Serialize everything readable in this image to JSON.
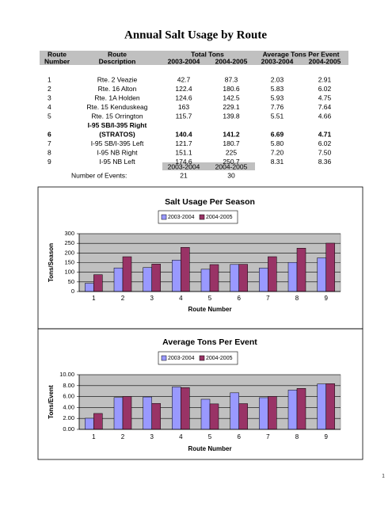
{
  "title": "Annual Salt Usage by Route",
  "table": {
    "header_top": [
      "Route",
      "Route",
      "Total Tons",
      "Average Tons Per Event"
    ],
    "header_bottom": [
      "Number",
      "Description",
      "2003-2004",
      "2004-2005",
      "2003-2004",
      "2004-2005"
    ],
    "rows": [
      {
        "number": "1",
        "description": [
          "Rte. 2 Veazie"
        ],
        "cells": [
          "42.7",
          "87.3",
          "2.03",
          "2.91"
        ]
      },
      {
        "number": "2",
        "description": [
          "Rte. 16 Alton"
        ],
        "cells": [
          "122.4",
          "180.6",
          "5.83",
          "6.02"
        ]
      },
      {
        "number": "3",
        "description": [
          "Rte. 1A Holden"
        ],
        "cells": [
          "124.6",
          "142.5",
          "5.93",
          "4.75"
        ]
      },
      {
        "number": "4",
        "description": [
          "Rte. 15 Kenduskeag"
        ],
        "cells": [
          "163",
          "229.1",
          "7.76",
          "7.64"
        ]
      },
      {
        "number": "5",
        "description": [
          "Rte. 15 Orrington"
        ],
        "cells": [
          "115.7",
          "139.8",
          "5.51",
          "4.66"
        ]
      },
      {
        "number": "6",
        "description": [
          "I-95 SB/I-395 Right",
          "(STRATOS)"
        ],
        "cells": [
          "140.4",
          "141.2",
          "6.69",
          "4.71"
        ],
        "bold": true
      },
      {
        "number": "7",
        "description": [
          "I-95 SB/I-395 Left"
        ],
        "cells": [
          "121.7",
          "180.7",
          "5.80",
          "6.02"
        ]
      },
      {
        "number": "8",
        "description": [
          "I-95 NB Right"
        ],
        "cells": [
          "151.1",
          "225",
          "7.20",
          "7.50"
        ]
      },
      {
        "number": "9",
        "description": [
          "I-95 NB Left"
        ],
        "cells": [
          "174.6",
          "250.7",
          "8.31",
          "8.36"
        ]
      }
    ]
  },
  "events": {
    "header": [
      "2003-2004",
      "2004-2005"
    ],
    "label": "Number of Events:",
    "values": [
      "21",
      "30"
    ]
  },
  "chart_data": [
    {
      "type": "bar",
      "title": "Salt Usage Per Season",
      "y_label": "Tons/Season",
      "x_label": "Route Number",
      "categories": [
        "1",
        "2",
        "3",
        "4",
        "5",
        "6",
        "7",
        "8",
        "9"
      ],
      "series": [
        {
          "name": "2003-2004",
          "color": "#9999ff",
          "values": [
            42.7,
            122.4,
            124.6,
            163,
            115.7,
            140.4,
            121.7,
            151.1,
            174.6
          ]
        },
        {
          "name": "2004-2005",
          "color": "#993366",
          "values": [
            87.3,
            180.6,
            142.5,
            229.1,
            139.8,
            141.2,
            180.7,
            225,
            250.7
          ]
        }
      ],
      "ylim": [
        0,
        300
      ],
      "yticks": [
        0,
        50,
        100,
        150,
        200,
        250,
        300
      ],
      "grid": true,
      "legend": "top"
    },
    {
      "type": "bar",
      "title": "Average Tons Per Event",
      "y_label": "Tons/Event",
      "x_label": "Route Number",
      "categories": [
        "1",
        "2",
        "3",
        "4",
        "5",
        "6",
        "7",
        "8",
        "9"
      ],
      "series": [
        {
          "name": "2003-2004",
          "color": "#9999ff",
          "values": [
            2.03,
            5.83,
            5.93,
            7.76,
            5.51,
            6.69,
            5.8,
            7.2,
            8.31
          ]
        },
        {
          "name": "2004-2005",
          "color": "#993366",
          "values": [
            2.91,
            6.02,
            4.75,
            7.64,
            4.66,
            4.71,
            6.02,
            7.5,
            8.36
          ]
        }
      ],
      "ylim": [
        0,
        10
      ],
      "yticks": [
        {
          "value": 0,
          "label": "0.00"
        },
        {
          "value": 2,
          "label": "2.00"
        },
        {
          "value": 4,
          "label": "4.00"
        },
        {
          "value": 6,
          "label": "6.00"
        },
        {
          "value": 8,
          "label": "8.00"
        },
        {
          "value": 10,
          "label": "10.00"
        }
      ],
      "grid": true,
      "legend": "top"
    }
  ],
  "page_number": "1"
}
